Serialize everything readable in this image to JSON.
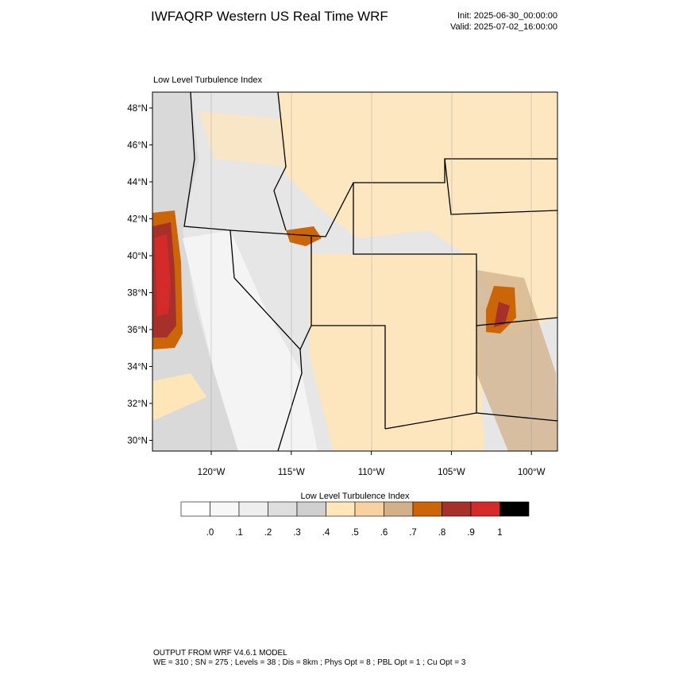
{
  "header": {
    "title": "IWFAQRP Western US Real Time WRF",
    "init": "Init: 2025-06-30_00:00:00",
    "valid": "Valid: 2025-07-02_16:00:00"
  },
  "map": {
    "subtitle": "Low Level Turbulence Index",
    "lat_labels": [
      "48°N",
      "46°N",
      "44°N",
      "42°N",
      "40°N",
      "38°N",
      "36°N",
      "34°N",
      "32°N",
      "30°N"
    ],
    "lon_labels": [
      "120°W",
      "115°W",
      "110°W",
      "105°W",
      "100°W"
    ]
  },
  "colorbar": {
    "title": "Low Level Turbulence Index",
    "labels": [
      ".0",
      ".1",
      ".2",
      ".3",
      ".4",
      ".5",
      ".6",
      ".7",
      ".8",
      ".9",
      "1"
    ],
    "colors": [
      "#ffffff",
      "#f7f7f7",
      "#eeeeee",
      "#dedede",
      "#cfcfcf",
      "#ffe6b8",
      "#f7d2a0",
      "#d2b08a",
      "#cc6408",
      "#a8302a",
      "#d42a2a",
      "#000000"
    ]
  },
  "footer": {
    "line1": "OUTPUT FROM WRF V4.6.1 MODEL",
    "line2": "WE = 310 ; SN = 275 ; Levels = 38 ; Dis = 8km ; Phys Opt = 8 ; PBL Opt = 1 ; Cu Opt = 3"
  }
}
